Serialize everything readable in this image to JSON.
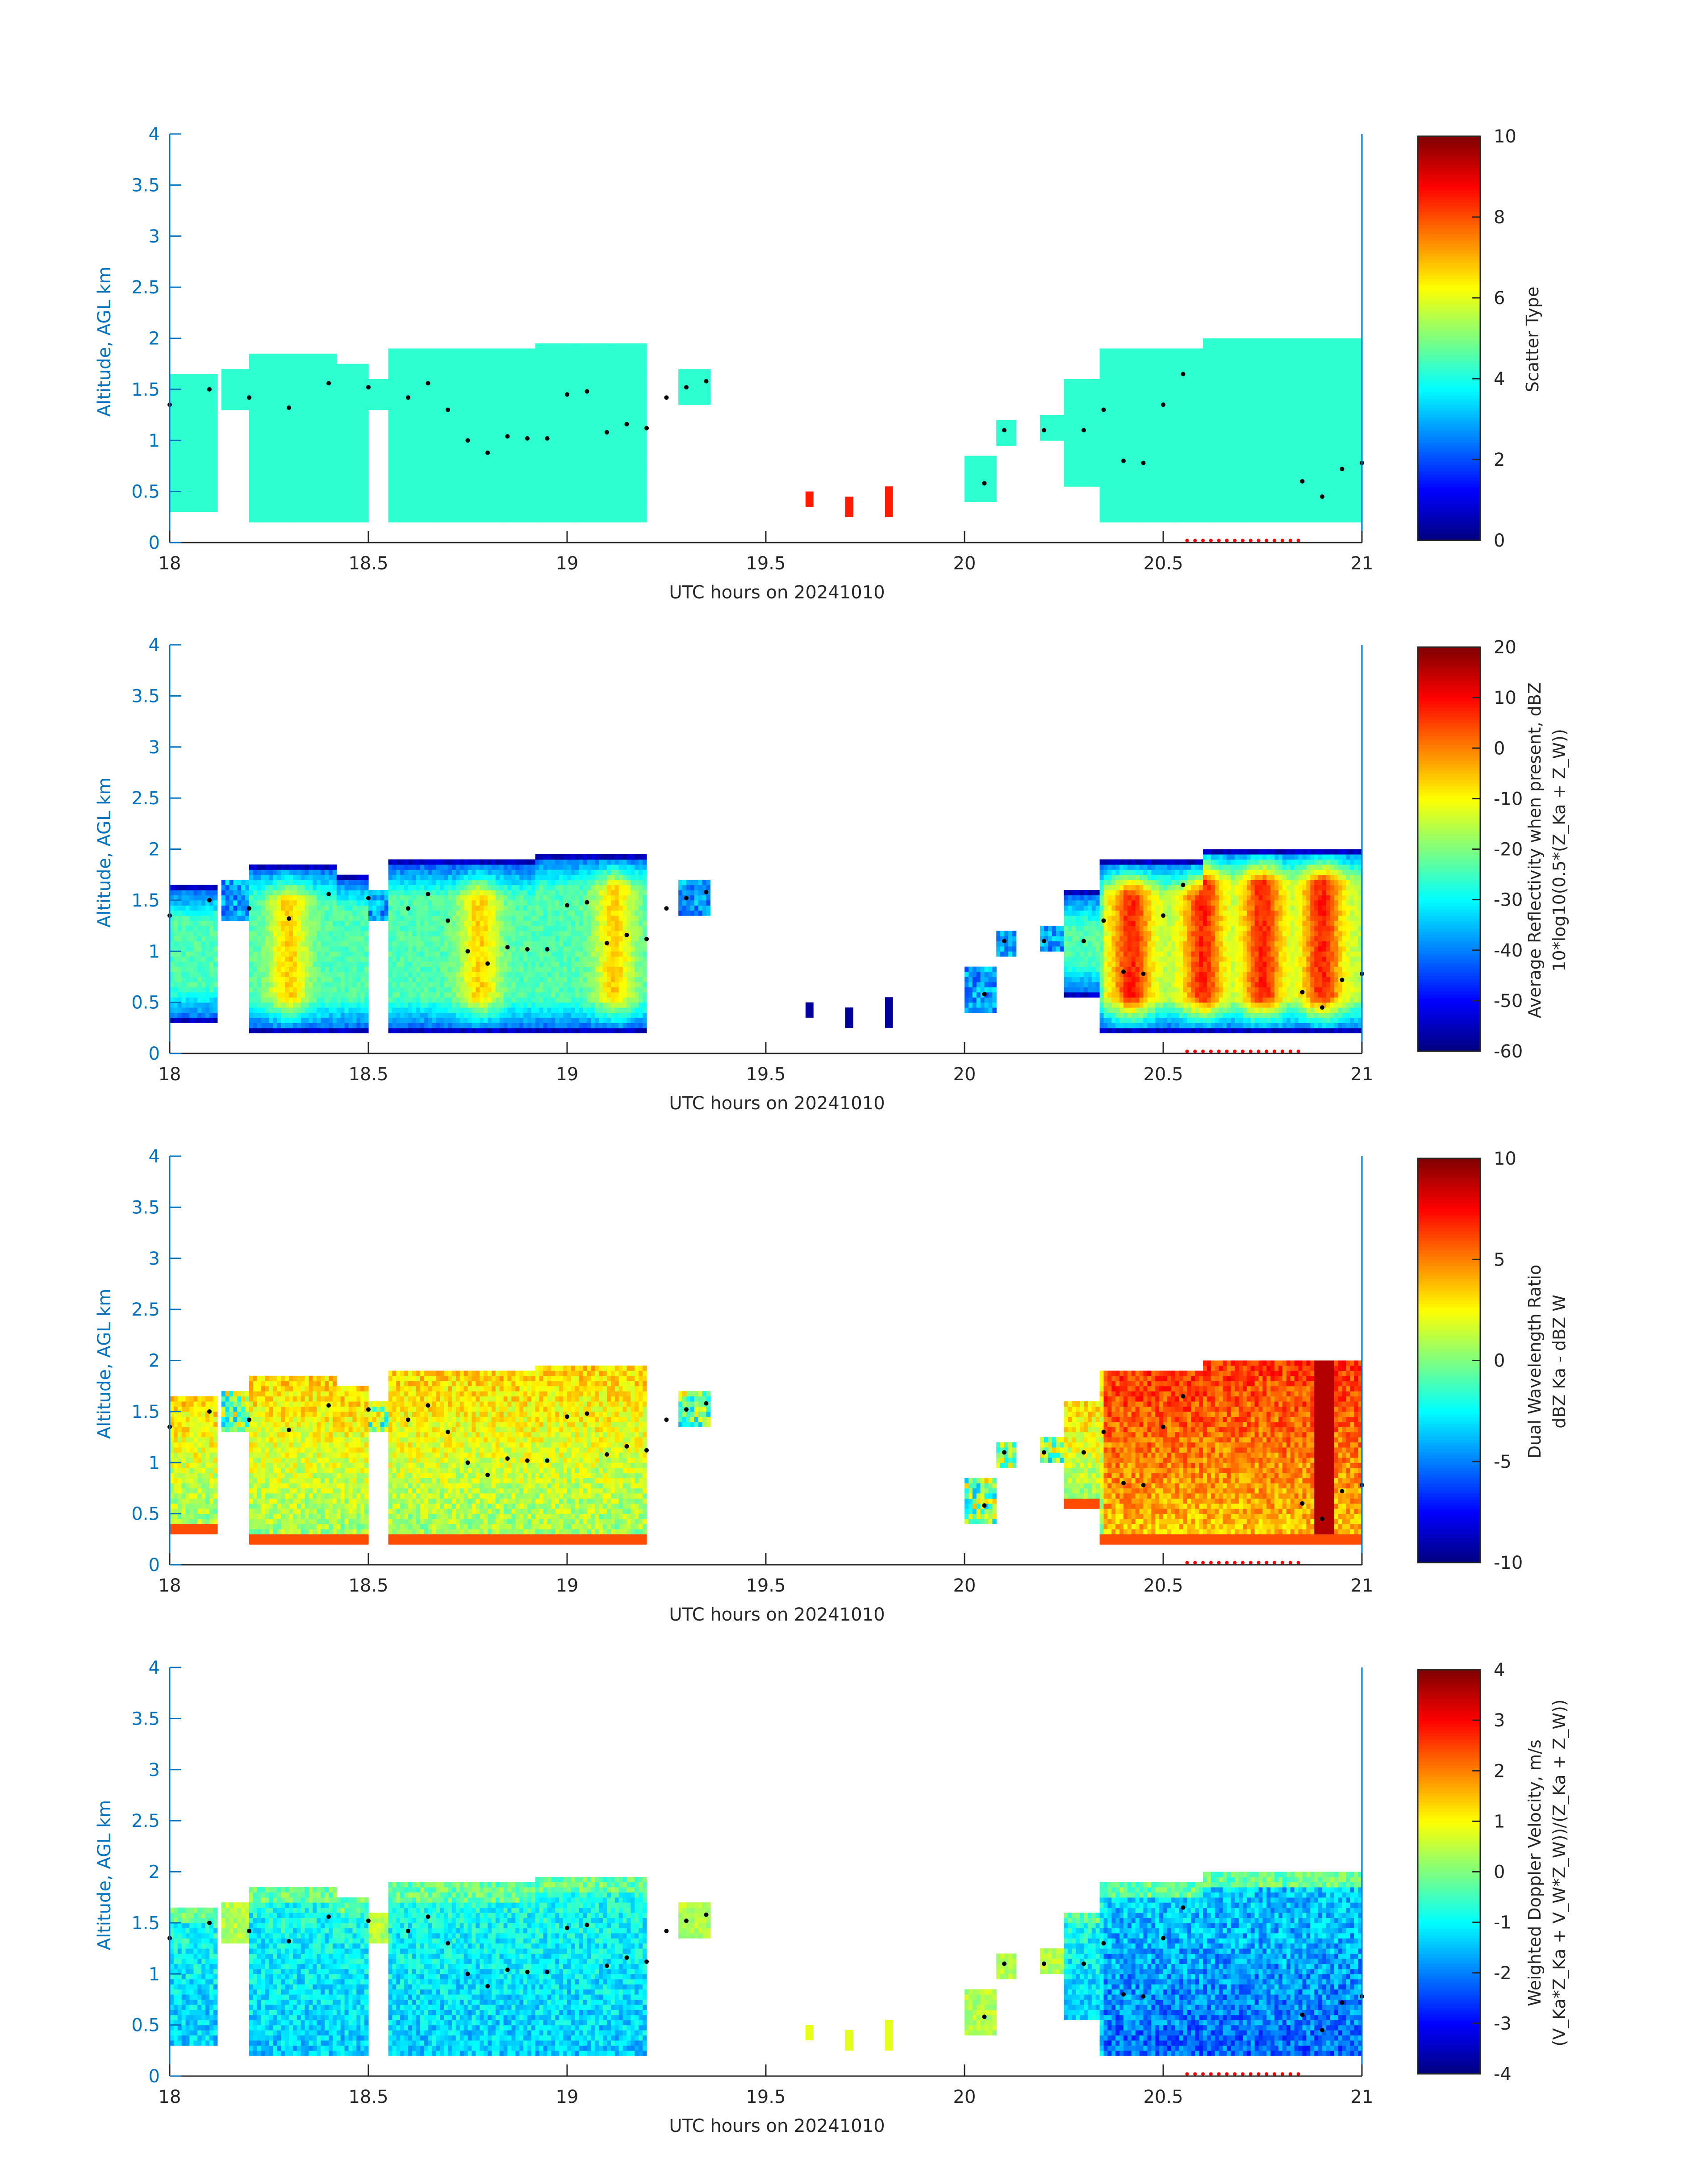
{
  "figure": {
    "background": "#ffffff",
    "axis_color": "#0072bd",
    "text_color": "#262626"
  },
  "chart_data": [
    {
      "type": "heatmap",
      "title": "",
      "xlabel": "UTC hours on 20241010",
      "ylabel": "Altitude, AGL km",
      "xlim": [
        18,
        21
      ],
      "ylim": [
        0,
        4
      ],
      "xticks": [
        18,
        18.5,
        19,
        19.5,
        20,
        20.5,
        21
      ],
      "xtick_labels": [
        "18",
        "18.5",
        "19",
        "19.5",
        "20",
        "20.5",
        "21"
      ],
      "yticks": [
        0,
        0.5,
        1,
        1.5,
        2,
        2.5,
        3,
        3.5,
        4
      ],
      "ytick_labels": [
        "0",
        "0.5",
        "1",
        "1.5",
        "2",
        "2.5",
        "3",
        "3.5",
        "4"
      ],
      "colorbar": {
        "label_lines": [
          "Scatter Type"
        ],
        "clim": [
          0,
          10
        ],
        "ticks": [
          0,
          2,
          4,
          6,
          8,
          10
        ],
        "tick_labels": [
          "0",
          "2",
          "4",
          "6",
          "8",
          "10"
        ]
      },
      "field": "scatter"
    },
    {
      "type": "heatmap",
      "title": "",
      "xlabel": "UTC hours on 20241010",
      "ylabel": "Altitude, AGL km",
      "xlim": [
        18,
        21
      ],
      "ylim": [
        0,
        4
      ],
      "xticks": [
        18,
        18.5,
        19,
        19.5,
        20,
        20.5,
        21
      ],
      "xtick_labels": [
        "18",
        "18.5",
        "19",
        "19.5",
        "20",
        "20.5",
        "21"
      ],
      "yticks": [
        0,
        0.5,
        1,
        1.5,
        2,
        2.5,
        3,
        3.5,
        4
      ],
      "ytick_labels": [
        "0",
        "0.5",
        "1",
        "1.5",
        "2",
        "2.5",
        "3",
        "3.5",
        "4"
      ],
      "colorbar": {
        "label_lines": [
          "Average Reflectivity when present, dBZ",
          "10*log10(0.5*(Z_Ka + Z_W))"
        ],
        "clim": [
          -60,
          20
        ],
        "ticks": [
          -60,
          -50,
          -40,
          -30,
          -20,
          -10,
          0,
          10,
          20
        ],
        "tick_labels": [
          "-60",
          "-50",
          "-40",
          "-30",
          "-20",
          "-10",
          "0",
          "10",
          "20"
        ]
      },
      "field": "reflectivity"
    },
    {
      "type": "heatmap",
      "title": "",
      "xlabel": "UTC hours on 20241010",
      "ylabel": "Altitude, AGL km",
      "xlim": [
        18,
        21
      ],
      "ylim": [
        0,
        4
      ],
      "xticks": [
        18,
        18.5,
        19,
        19.5,
        20,
        20.5,
        21
      ],
      "xtick_labels": [
        "18",
        "18.5",
        "19",
        "19.5",
        "20",
        "20.5",
        "21"
      ],
      "yticks": [
        0,
        0.5,
        1,
        1.5,
        2,
        2.5,
        3,
        3.5,
        4
      ],
      "ytick_labels": [
        "0",
        "0.5",
        "1",
        "1.5",
        "2",
        "2.5",
        "3",
        "3.5",
        "4"
      ],
      "colorbar": {
        "label_lines": [
          "Dual Wavelength Ratio",
          "dBZ Ka - dBZ W"
        ],
        "clim": [
          -10,
          10
        ],
        "ticks": [
          -10,
          -5,
          0,
          5,
          10
        ],
        "tick_labels": [
          "-10",
          "-5",
          "0",
          "5",
          "10"
        ]
      },
      "field": "dwr"
    },
    {
      "type": "heatmap",
      "title": "",
      "xlabel": "UTC hours on 20241010",
      "ylabel": "Altitude, AGL km",
      "xlim": [
        18,
        21
      ],
      "ylim": [
        0,
        4
      ],
      "xticks": [
        18,
        18.5,
        19,
        19.5,
        20,
        20.5,
        21
      ],
      "xtick_labels": [
        "18",
        "18.5",
        "19",
        "19.5",
        "20",
        "20.5",
        "21"
      ],
      "yticks": [
        0,
        0.5,
        1,
        1.5,
        2,
        2.5,
        3,
        3.5,
        4
      ],
      "ytick_labels": [
        "0",
        "0.5",
        "1",
        "1.5",
        "2",
        "2.5",
        "3",
        "3.5",
        "4"
      ],
      "colorbar": {
        "label_lines": [
          "Weighted Doppler Velocity, m/s",
          "(V_Ka*Z_Ka + V_W*Z_W))/(Z_Ka + Z_W))"
        ],
        "clim": [
          -4,
          4
        ],
        "ticks": [
          -4,
          -3,
          -2,
          -1,
          0,
          1,
          2,
          3,
          4
        ],
        "tick_labels": [
          "-4",
          "-3",
          "-2",
          "-1",
          "0",
          "1",
          "2",
          "3",
          "4"
        ]
      },
      "field": "velocity"
    }
  ],
  "cloud_layers": [
    {
      "x0": 18.0,
      "x1": 18.12,
      "base": 0.3,
      "top": 1.65
    },
    {
      "x0": 18.13,
      "x1": 18.2,
      "base": 1.3,
      "top": 1.7
    },
    {
      "x0": 18.18,
      "x1": 18.42,
      "base": 0.2,
      "top": 1.85
    },
    {
      "x0": 18.42,
      "x1": 18.5,
      "base": 0.2,
      "top": 1.75
    },
    {
      "x0": 18.5,
      "x1": 18.55,
      "base": 1.3,
      "top": 1.6
    },
    {
      "x0": 18.55,
      "x1": 18.92,
      "base": 0.2,
      "top": 1.88
    },
    {
      "x0": 18.92,
      "x1": 19.2,
      "base": 0.2,
      "top": 1.96
    },
    {
      "x0": 19.28,
      "x1": 19.36,
      "base": 1.35,
      "top": 1.7
    },
    {
      "x0": 20.0,
      "x1": 20.08,
      "base": 0.4,
      "top": 0.85
    },
    {
      "x0": 20.07,
      "x1": 20.13,
      "base": 0.95,
      "top": 1.2
    },
    {
      "x0": 20.19,
      "x1": 20.25,
      "base": 1.0,
      "top": 1.25
    },
    {
      "x0": 20.25,
      "x1": 20.34,
      "base": 0.55,
      "top": 1.6
    },
    {
      "x0": 20.34,
      "x1": 20.6,
      "base": 0.2,
      "top": 1.9
    },
    {
      "x0": 20.6,
      "x1": 21.0,
      "base": 0.2,
      "top": 2.02
    }
  ],
  "cloud_base_points": [
    {
      "t": 18.0,
      "alt": 1.35
    },
    {
      "t": 18.1,
      "alt": 1.5
    },
    {
      "t": 18.2,
      "alt": 1.42
    },
    {
      "t": 18.3,
      "alt": 1.32
    },
    {
      "t": 18.4,
      "alt": 1.56
    },
    {
      "t": 18.5,
      "alt": 1.52
    },
    {
      "t": 18.6,
      "alt": 1.42
    },
    {
      "t": 18.65,
      "alt": 1.56
    },
    {
      "t": 18.7,
      "alt": 1.3
    },
    {
      "t": 18.75,
      "alt": 1.0
    },
    {
      "t": 18.8,
      "alt": 0.88
    },
    {
      "t": 18.85,
      "alt": 1.04
    },
    {
      "t": 18.9,
      "alt": 1.02
    },
    {
      "t": 18.95,
      "alt": 1.02
    },
    {
      "t": 19.0,
      "alt": 1.45
    },
    {
      "t": 19.05,
      "alt": 1.48
    },
    {
      "t": 19.1,
      "alt": 1.08
    },
    {
      "t": 19.15,
      "alt": 1.16
    },
    {
      "t": 19.2,
      "alt": 1.12
    },
    {
      "t": 19.25,
      "alt": 1.42
    },
    {
      "t": 19.3,
      "alt": 1.52
    },
    {
      "t": 19.35,
      "alt": 1.58
    },
    {
      "t": 20.05,
      "alt": 0.58
    },
    {
      "t": 20.1,
      "alt": 1.1
    },
    {
      "t": 20.2,
      "alt": 1.1
    },
    {
      "t": 20.3,
      "alt": 1.1
    },
    {
      "t": 20.35,
      "alt": 1.3
    },
    {
      "t": 20.4,
      "alt": 0.8
    },
    {
      "t": 20.45,
      "alt": 0.78
    },
    {
      "t": 20.5,
      "alt": 1.35
    },
    {
      "t": 20.55,
      "alt": 1.65
    },
    {
      "t": 20.85,
      "alt": 0.6
    },
    {
      "t": 20.9,
      "alt": 0.45
    },
    {
      "t": 20.95,
      "alt": 0.72
    },
    {
      "t": 21.0,
      "alt": 0.78
    }
  ],
  "precip_marker_segment": {
    "t0": 20.56,
    "t1": 20.84,
    "alt": 0.02,
    "color": "#ff0000"
  }
}
